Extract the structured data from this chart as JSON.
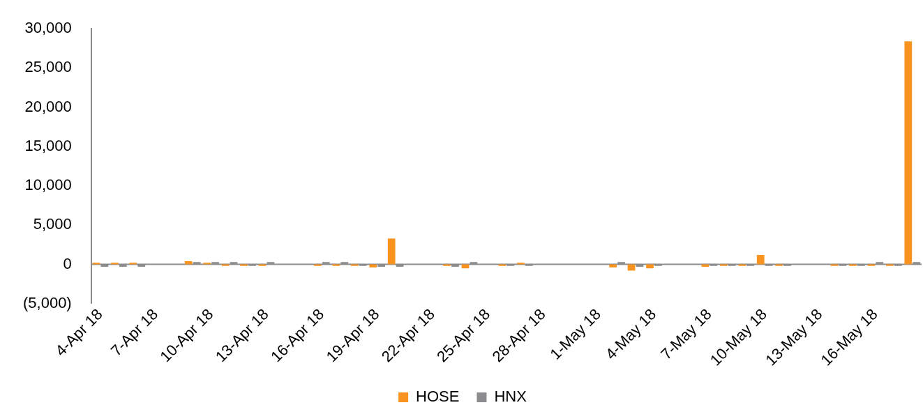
{
  "chart_data": {
    "type": "bar",
    "x": [
      "--04-04",
      "--04-05",
      "--04-06",
      "--04-09",
      "--04-10",
      "--04-11",
      "--04-12",
      "--04-13",
      "--04-16",
      "--04-17",
      "--04-18",
      "--04-19",
      "--04-20",
      "--04-23",
      "--04-24",
      "--04-26",
      "--04-27",
      "--05-02",
      "--05-03",
      "--05-04",
      "--05-07",
      "--05-08",
      "--05-09",
      "--05-10",
      "--05-11",
      "--05-14",
      "--05-15",
      "--05-16",
      "--05-17",
      "--05-18"
    ],
    "series": [
      {
        "name": "HOSE",
        "color": "#f7931e",
        "values": [
          200,
          200,
          200,
          400,
          200,
          -200,
          -200,
          -200,
          -200,
          -200,
          -200,
          -400,
          3300,
          -200,
          -500,
          -200,
          200,
          -400,
          -800,
          -500,
          -300,
          -200,
          -200,
          1200,
          -200,
          -200,
          -200,
          -200,
          -200,
          28400
        ]
      },
      {
        "name": "HNX",
        "color": "#8c8c8e",
        "values": [
          -300,
          -300,
          -300,
          300,
          300,
          300,
          -200,
          300,
          300,
          300,
          -200,
          -300,
          -300,
          -300,
          300,
          -200,
          -200,
          300,
          -300,
          -200,
          -200,
          -200,
          -200,
          -200,
          -200,
          -200,
          -200,
          300,
          -200,
          300
        ]
      }
    ],
    "xlim": [
      "--04-03T12:00",
      "--05-18T12:00"
    ],
    "ref_lines": [
      {
        "axis": "y",
        "value": 0,
        "color": "#8c8c8e"
      }
    ],
    "xticks": [
      {
        "value": "--04-04",
        "label": "4-Apr 18"
      },
      {
        "value": "--04-07",
        "label": "7-Apr 18"
      },
      {
        "value": "--04-10",
        "label": "10-Apr 18"
      },
      {
        "value": "--04-13",
        "label": "13-Apr 18"
      },
      {
        "value": "--04-16",
        "label": "16-Apr 18"
      },
      {
        "value": "--04-19",
        "label": "19-Apr 18"
      },
      {
        "value": "--04-22",
        "label": "22-Apr 18"
      },
      {
        "value": "--04-25",
        "label": "25-Apr 18"
      },
      {
        "value": "--04-28",
        "label": "28-Apr 18"
      },
      {
        "value": "--05-01",
        "label": "1-May 18"
      },
      {
        "value": "--05-04",
        "label": "4-May 18"
      },
      {
        "value": "--05-07",
        "label": "7-May 18"
      },
      {
        "value": "--05-10",
        "label": "10-May 18"
      },
      {
        "value": "--05-13",
        "label": "13-May 18"
      },
      {
        "value": "--05-16",
        "label": "16-May 18"
      }
    ],
    "ylim": [
      -5000,
      30000
    ],
    "yticks": [
      {
        "value": -5000,
        "label": "(5,000)"
      },
      {
        "value": 0,
        "label": "0"
      },
      {
        "value": 5000,
        "label": "5,000"
      },
      {
        "value": 10000,
        "label": "10,000"
      },
      {
        "value": 15000,
        "label": "15,000"
      },
      {
        "value": 20000,
        "label": "20,000"
      },
      {
        "value": 25000,
        "label": "25,000"
      },
      {
        "value": 30000,
        "label": "30,000"
      }
    ],
    "grid": false,
    "legend": "bottom"
  }
}
